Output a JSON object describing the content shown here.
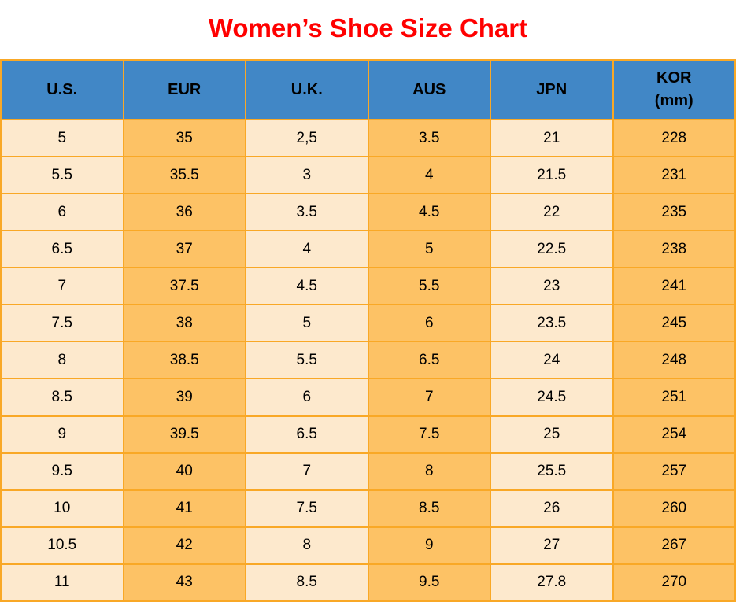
{
  "title": "Women’s Shoe Size Chart",
  "colors": {
    "title_red": "#FF0000",
    "header_blue": "#4187C6",
    "cell_cream": "#FDE9CD",
    "cell_orange": "#FDC265",
    "grid_border": "#F9A826",
    "text": "#000000"
  },
  "chart_data": {
    "type": "table",
    "title": "Women’s Shoe Size Chart",
    "columns": [
      "U.S.",
      "EUR",
      "U.K.",
      "AUS",
      "JPN",
      "KOR (mm)"
    ],
    "header_display": [
      "U.S.",
      "EUR",
      "U.K.",
      "AUS",
      "JPN",
      "KOR\n(mm)"
    ],
    "rows": [
      [
        "5",
        "35",
        "2,5",
        "3.5",
        "21",
        "228"
      ],
      [
        "5.5",
        "35.5",
        "3",
        "4",
        "21.5",
        "231"
      ],
      [
        "6",
        "36",
        "3.5",
        "4.5",
        "22",
        "235"
      ],
      [
        "6.5",
        "37",
        "4",
        "5",
        "22.5",
        "238"
      ],
      [
        "7",
        "37.5",
        "4.5",
        "5.5",
        "23",
        "241"
      ],
      [
        "7.5",
        "38",
        "5",
        "6",
        "23.5",
        "245"
      ],
      [
        "8",
        "38.5",
        "5.5",
        "6.5",
        "24",
        "248"
      ],
      [
        "8.5",
        "39",
        "6",
        "7",
        "24.5",
        "251"
      ],
      [
        "9",
        "39.5",
        "6.5",
        "7.5",
        "25",
        "254"
      ],
      [
        "9.5",
        "40",
        "7",
        "8",
        "25.5",
        "257"
      ],
      [
        "10",
        "41",
        "7.5",
        "8.5",
        "26",
        "260"
      ],
      [
        "10.5",
        "42",
        "8",
        "9",
        "27",
        "267"
      ],
      [
        "11",
        "43",
        "8.5",
        "9.5",
        "27.8",
        "270"
      ]
    ]
  }
}
